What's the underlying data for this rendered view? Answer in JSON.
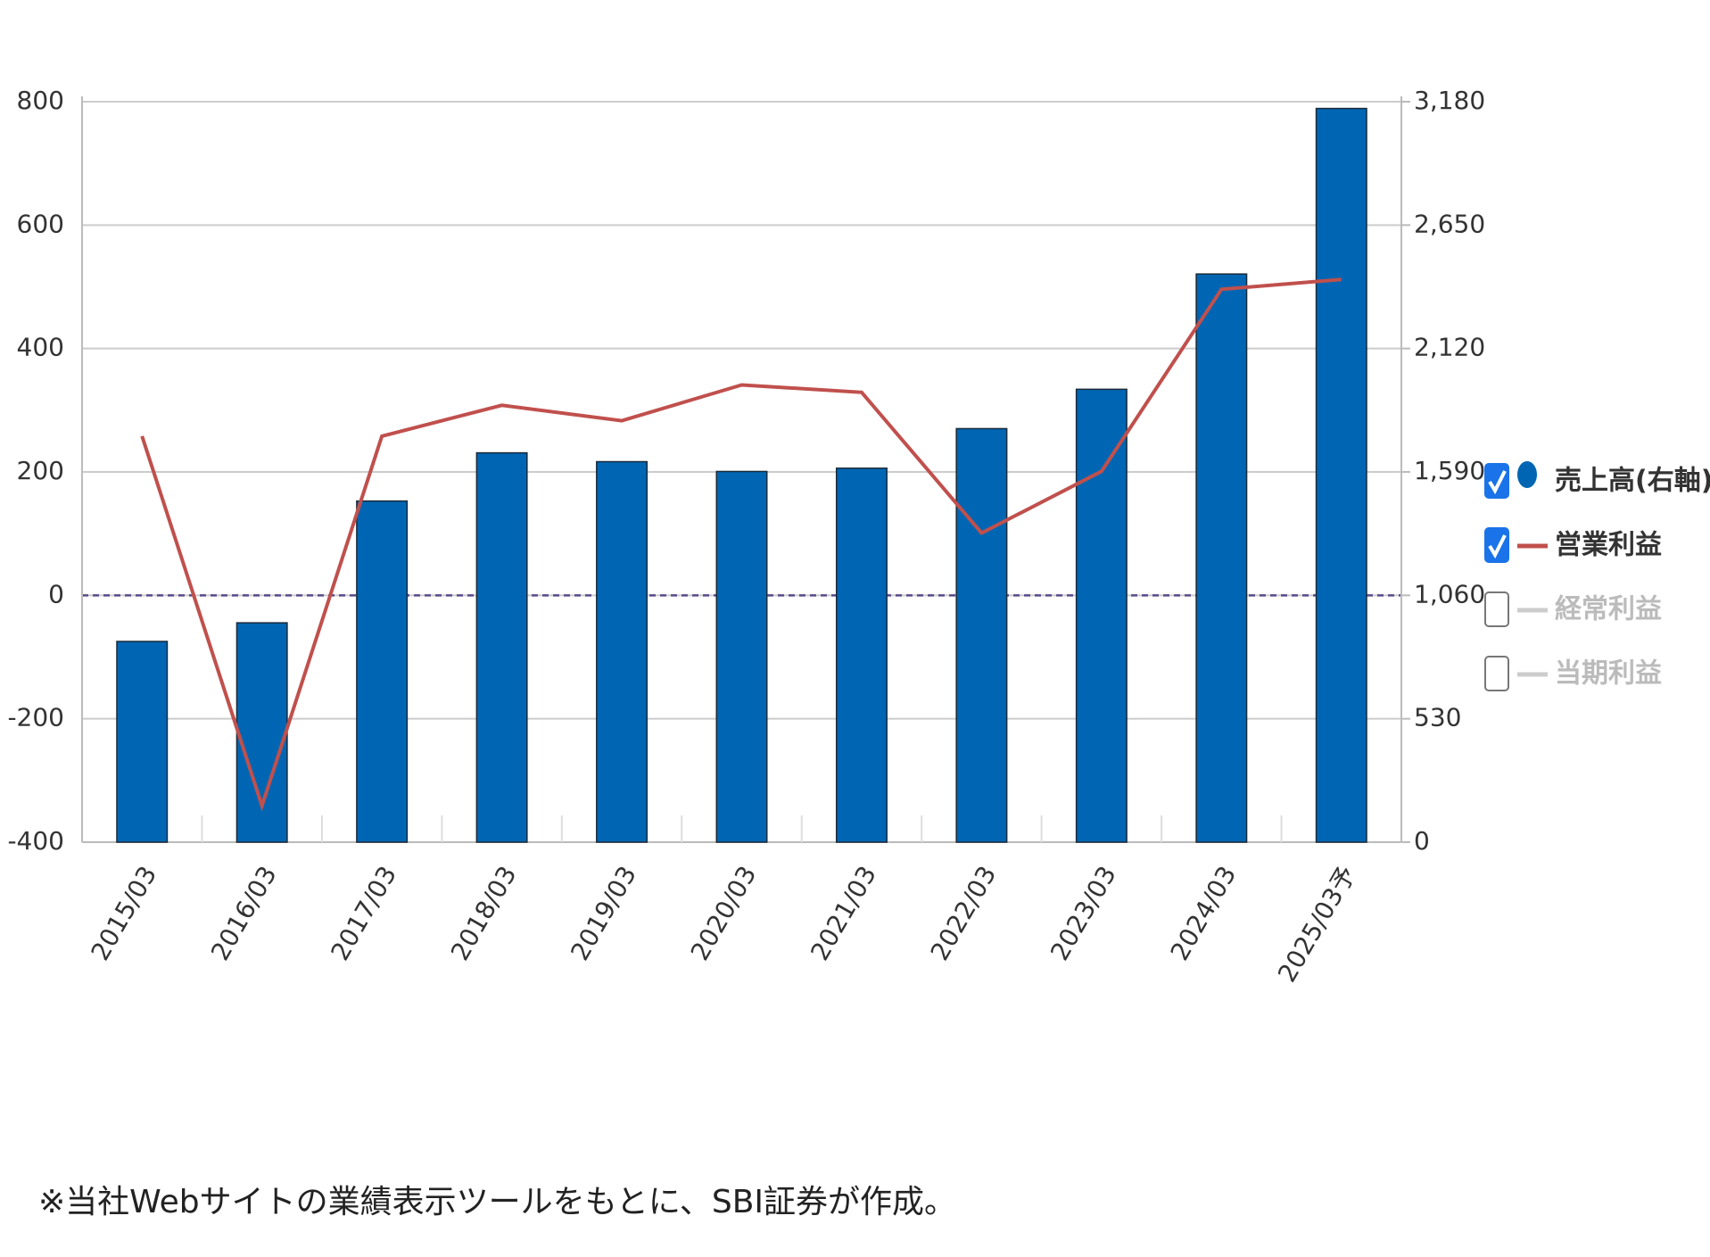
{
  "chart_data": {
    "type": "bar_line",
    "categories": [
      "2015/03",
      "2016/03",
      "2017/03",
      "2018/03",
      "2019/03",
      "2020/03",
      "2021/03",
      "2022/03",
      "2023/03",
      "2024/03",
      "2025/03予"
    ],
    "series": [
      {
        "name": "売上高(右軸)",
        "type": "bar",
        "axis": "y2",
        "color": "#0066b3",
        "checked": true,
        "values": [
          862,
          942,
          1465,
          1672,
          1634,
          1592,
          1606,
          1776,
          1945,
          2440,
          3151
        ]
      },
      {
        "name": "営業利益",
        "type": "line",
        "axis": "y",
        "color": "#c0504d",
        "checked": true,
        "values": [
          258,
          -341,
          258,
          308,
          283,
          341,
          329,
          101,
          201,
          496,
          512
        ]
      }
    ],
    "legend_extra": [
      {
        "name": "経常利益",
        "checked": false
      },
      {
        "name": "当期利益",
        "checked": false
      }
    ],
    "ylim": [
      -400,
      800
    ],
    "yticks": [
      800,
      600,
      400,
      200,
      0,
      -200,
      -400
    ],
    "y2lim": [
      0,
      3180
    ],
    "y2ticks": [
      {
        "value": 3180,
        "label": "3,180"
      },
      {
        "value": 2650,
        "label": "2,650"
      },
      {
        "value": 2120,
        "label": "2,120"
      },
      {
        "value": 1590,
        "label": "1,590"
      },
      {
        "value": 1060,
        "label": "1,060"
      },
      530,
      0
    ],
    "grid": true,
    "legend": "right",
    "note": "※当社Webサイトの業績表示ツールをもとに、SBI証券が作成。"
  }
}
